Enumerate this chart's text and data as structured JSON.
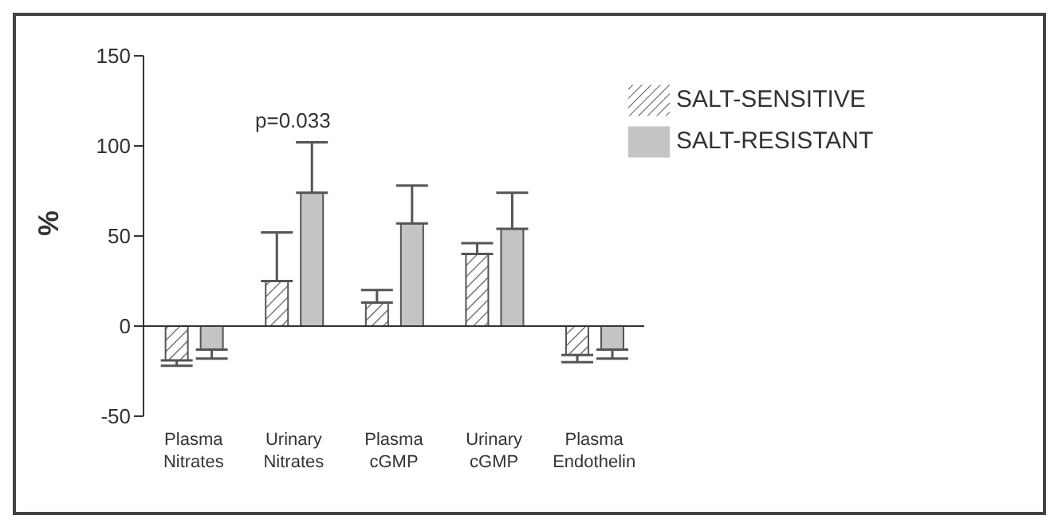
{
  "chart_data": {
    "type": "bar",
    "ylabel": "%",
    "categories": [
      "Plasma Nitrates",
      "Urinary Nitrates",
      "Plasma cGMP",
      "Urinary cGMP",
      "Plasma Endothelin"
    ],
    "series": [
      {
        "name": "SALT-SENSITIVE",
        "color": "#555555",
        "values": [
          -19,
          25,
          13,
          40,
          -16
        ],
        "errors": [
          [
            -22,
            -19
          ],
          [
            25,
            52
          ],
          [
            13,
            20
          ],
          [
            40,
            46
          ],
          [
            -20,
            -16
          ]
        ]
      },
      {
        "name": "SALT-RESISTANT",
        "color": "#c4c4c4",
        "values": [
          -13,
          74,
          57,
          54,
          -13
        ],
        "errors": [
          [
            -18,
            -13
          ],
          [
            74,
            102
          ],
          [
            57,
            78
          ],
          [
            54,
            74
          ],
          [
            -18,
            -13
          ]
        ]
      }
    ],
    "ylim": [
      -50,
      150
    ],
    "yticks": [
      -50,
      0,
      50,
      100,
      150
    ],
    "legend": "top right",
    "annotations": [
      "p=0.033"
    ]
  }
}
